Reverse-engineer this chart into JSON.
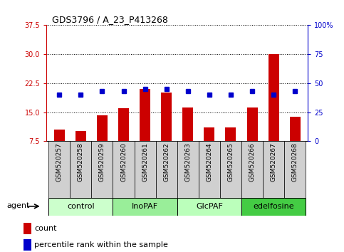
{
  "title": "GDS3796 / A_23_P413268",
  "samples": [
    "GSM520257",
    "GSM520258",
    "GSM520259",
    "GSM520260",
    "GSM520261",
    "GSM520262",
    "GSM520263",
    "GSM520264",
    "GSM520265",
    "GSM520266",
    "GSM520267",
    "GSM520268"
  ],
  "counts": [
    10.5,
    10.2,
    14.2,
    16.0,
    21.0,
    20.0,
    16.2,
    11.0,
    11.0,
    16.2,
    30.0,
    13.8
  ],
  "percentiles": [
    40,
    40,
    43,
    43,
    45,
    45,
    43,
    40,
    40,
    43,
    40,
    43
  ],
  "groups": [
    {
      "label": "control",
      "start": 0,
      "end": 3,
      "color": "#ccffcc"
    },
    {
      "label": "InoPAF",
      "start": 3,
      "end": 6,
      "color": "#99ee99"
    },
    {
      "label": "GlcPAF",
      "start": 6,
      "end": 9,
      "color": "#bbffbb"
    },
    {
      "label": "edelfosine",
      "start": 9,
      "end": 12,
      "color": "#44cc44"
    }
  ],
  "ylim_left": [
    7.5,
    37.5
  ],
  "ylim_right": [
    0,
    100
  ],
  "yticks_left": [
    7.5,
    15.0,
    22.5,
    30.0,
    37.5
  ],
  "yticks_right": [
    0,
    25,
    50,
    75,
    100
  ],
  "ytick_labels_right": [
    "0",
    "25",
    "50",
    "75",
    "100%"
  ],
  "bar_color": "#cc0000",
  "dot_color": "#0000cc",
  "bar_width": 0.5,
  "legend_count": "count",
  "legend_pct": "percentile rank within the sample",
  "agent_label": "agent",
  "left_tick_color": "#cc0000",
  "right_tick_color": "#0000cc",
  "grid_color": "black",
  "title_fontsize": 9,
  "tick_fontsize": 7,
  "label_fontsize": 8
}
